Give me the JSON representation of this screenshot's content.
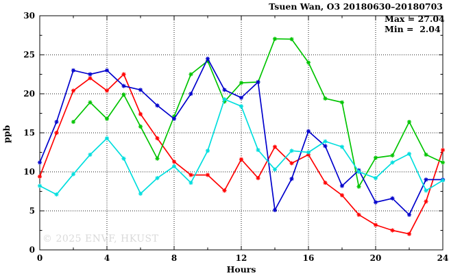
{
  "title": "Tsuen Wan, O3 20180630–20180703",
  "stats": {
    "max_label": "Max = 27.04",
    "min_label": "Min =  2.04"
  },
  "watermark": "© 2025 ENVF, HKUST",
  "chart_data": {
    "type": "line",
    "title": "Tsuen Wan, O3 20180630–20180703",
    "xlabel": "Hours",
    "ylabel": "ppb",
    "xlim": [
      0,
      24
    ],
    "ylim": [
      0,
      30
    ],
    "x_major_ticks": [
      0,
      4,
      8,
      12,
      16,
      20,
      24
    ],
    "x_minor_ticks": [
      2,
      6,
      10,
      14,
      18,
      22
    ],
    "y_major_ticks": [
      0,
      5,
      10,
      15,
      20,
      25,
      30
    ],
    "y_minor_ticks": [
      2.5,
      7.5,
      12.5,
      17.5,
      22.5,
      27.5
    ],
    "grid_x": [
      4,
      8,
      12,
      16,
      20
    ],
    "grid_y": [
      5,
      10,
      15,
      20,
      25
    ],
    "grid_style": "dotted",
    "legend_position": "top-right-inside",
    "max": 27.04,
    "min": 2.04,
    "series": [
      {
        "name": "red",
        "color": "#ff0000",
        "x": [
          0,
          1,
          2,
          3,
          4,
          5,
          6,
          7,
          8,
          9,
          10,
          11,
          12,
          13,
          14,
          15,
          16,
          17,
          18,
          19,
          20,
          21,
          22,
          23,
          24
        ],
        "values": [
          9.4,
          15.0,
          20.4,
          22.0,
          20.4,
          22.5,
          17.4,
          14.3,
          11.3,
          9.6,
          9.6,
          7.6,
          11.6,
          9.2,
          13.2,
          11.1,
          12.2,
          8.6,
          7.0,
          4.5,
          3.2,
          2.5,
          2.04,
          6.2,
          12.8
        ]
      },
      {
        "name": "green",
        "color": "#00c400",
        "x": [
          2,
          3,
          4,
          5,
          6,
          7,
          8,
          9,
          10,
          11,
          12,
          13,
          14,
          15,
          16,
          17,
          18,
          19,
          20,
          21,
          22,
          23,
          24
        ],
        "values": [
          16.4,
          18.9,
          16.8,
          19.9,
          15.8,
          11.7,
          17.1,
          22.5,
          24.2,
          19.0,
          21.4,
          21.5,
          27.04,
          27.0,
          24.0,
          19.4,
          18.9,
          8.1,
          11.8,
          12.1,
          16.4,
          12.2,
          11.2
        ]
      },
      {
        "name": "blue",
        "color": "#0000cc",
        "x": [
          0,
          1,
          2,
          3,
          4,
          5,
          6,
          7,
          8,
          9,
          10,
          11,
          12,
          13,
          14,
          15,
          16,
          17,
          18,
          19,
          20,
          21,
          22,
          23,
          24
        ],
        "values": [
          11.2,
          16.4,
          23.0,
          22.5,
          23.0,
          21.0,
          20.5,
          18.5,
          16.8,
          20.0,
          24.5,
          20.5,
          19.5,
          21.5,
          5.1,
          9.1,
          15.2,
          13.3,
          8.2,
          10.2,
          6.1,
          6.6,
          4.5,
          9.0,
          9.0
        ]
      },
      {
        "name": "cyan",
        "color": "#00dede",
        "x": [
          0,
          1,
          2,
          3,
          4,
          5,
          6,
          7,
          8,
          9,
          10,
          11,
          12,
          13,
          14,
          15,
          16,
          17,
          18,
          19,
          20,
          21,
          22,
          23,
          24
        ],
        "values": [
          8.2,
          7.1,
          9.7,
          12.2,
          14.3,
          11.7,
          7.2,
          9.2,
          10.7,
          8.6,
          12.7,
          19.3,
          18.4,
          12.8,
          10.3,
          12.7,
          12.5,
          13.9,
          13.2,
          10.0,
          9.2,
          11.2,
          12.3,
          7.6,
          8.9
        ]
      }
    ]
  }
}
